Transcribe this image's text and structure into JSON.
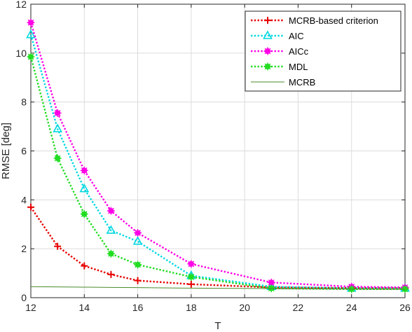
{
  "chart_data": {
    "type": "line",
    "xlabel": "T",
    "ylabel": "RMSE [deg]",
    "xlim": [
      12,
      26
    ],
    "ylim": [
      0,
      12
    ],
    "xticks": [
      12,
      14,
      16,
      18,
      20,
      22,
      24,
      26
    ],
    "yticks": [
      0,
      2,
      4,
      6,
      8,
      10,
      12
    ],
    "grid": true,
    "legend_position": "top-right",
    "series": [
      {
        "name": "MCRB-based criterion",
        "color": "#e60000",
        "line": "dotted",
        "marker": "plus",
        "x": [
          12,
          13,
          14,
          15,
          16,
          18,
          21,
          24,
          26
        ],
        "values": [
          3.7,
          2.1,
          1.3,
          0.95,
          0.7,
          0.55,
          0.42,
          0.4,
          0.4
        ]
      },
      {
        "name": "AIC",
        "color": "#00d8e0",
        "line": "dotted",
        "marker": "triangle",
        "x": [
          12,
          13,
          14,
          15,
          16,
          18,
          21,
          24,
          26
        ],
        "values": [
          10.75,
          6.9,
          4.45,
          2.75,
          2.3,
          0.9,
          0.45,
          0.38,
          0.38
        ]
      },
      {
        "name": "AICc",
        "color": "#ff00e6",
        "line": "dotted",
        "marker": "star",
        "x": [
          12,
          13,
          14,
          15,
          16,
          18,
          21,
          24,
          26
        ],
        "values": [
          11.25,
          7.55,
          5.2,
          3.55,
          2.65,
          1.38,
          0.62,
          0.45,
          0.42
        ]
      },
      {
        "name": "MDL",
        "color": "#22dd22",
        "line": "dotted",
        "marker": "star",
        "x": [
          12,
          13,
          14,
          15,
          16,
          18,
          21,
          24,
          26
        ],
        "values": [
          9.85,
          5.7,
          3.42,
          1.8,
          1.35,
          0.85,
          0.38,
          0.35,
          0.35
        ]
      },
      {
        "name": "MCRB",
        "color": "#4a8a2a",
        "line": "solid",
        "marker": "none",
        "x": [
          12,
          13,
          14,
          15,
          16,
          18,
          21,
          24,
          26
        ],
        "values": [
          0.45,
          0.44,
          0.43,
          0.42,
          0.41,
          0.39,
          0.37,
          0.35,
          0.34
        ]
      }
    ]
  }
}
